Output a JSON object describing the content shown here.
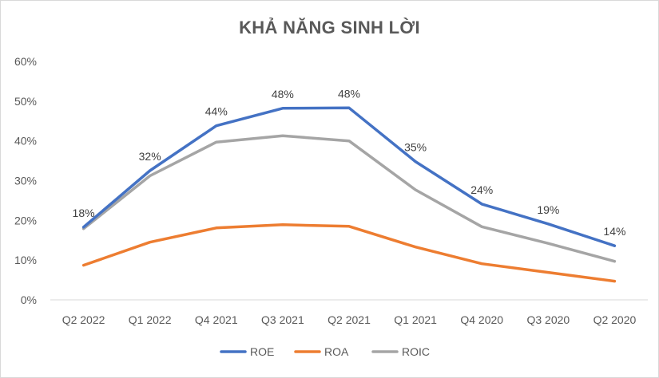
{
  "chart_data": {
    "type": "line",
    "title": "KHẢ NĂNG SINH LỜI",
    "xlabel": "",
    "ylabel": "",
    "ylim": [
      0,
      0.6
    ],
    "yticks": [
      0,
      0.1,
      0.2,
      0.3,
      0.4,
      0.5,
      0.6
    ],
    "ytick_labels": [
      "0%",
      "10%",
      "20%",
      "30%",
      "40%",
      "50%",
      "60%"
    ],
    "grid": false,
    "legend_position": "bottom",
    "categories": [
      "Q2 2022",
      "Q1 2022",
      "Q4 2021",
      "Q3 2021",
      "Q2 2021",
      "Q1 2021",
      "Q4 2020",
      "Q3 2020",
      "Q2 2020"
    ],
    "series": [
      {
        "name": "ROE",
        "color": "#4472C4",
        "values": [
          0.183,
          0.325,
          0.438,
          0.482,
          0.483,
          0.348,
          0.241,
          0.191,
          0.136
        ],
        "data_labels": [
          "18%",
          "32%",
          "44%",
          "48%",
          "48%",
          "35%",
          "24%",
          "19%",
          "14%"
        ]
      },
      {
        "name": "ROA",
        "color": "#ED7D31",
        "values": [
          0.087,
          0.145,
          0.181,
          0.189,
          0.185,
          0.133,
          0.091,
          0.069,
          0.047
        ]
      },
      {
        "name": "ROIC",
        "color": "#A5A5A5",
        "values": [
          0.179,
          0.312,
          0.397,
          0.413,
          0.4,
          0.277,
          0.184,
          0.142,
          0.097
        ]
      }
    ]
  }
}
